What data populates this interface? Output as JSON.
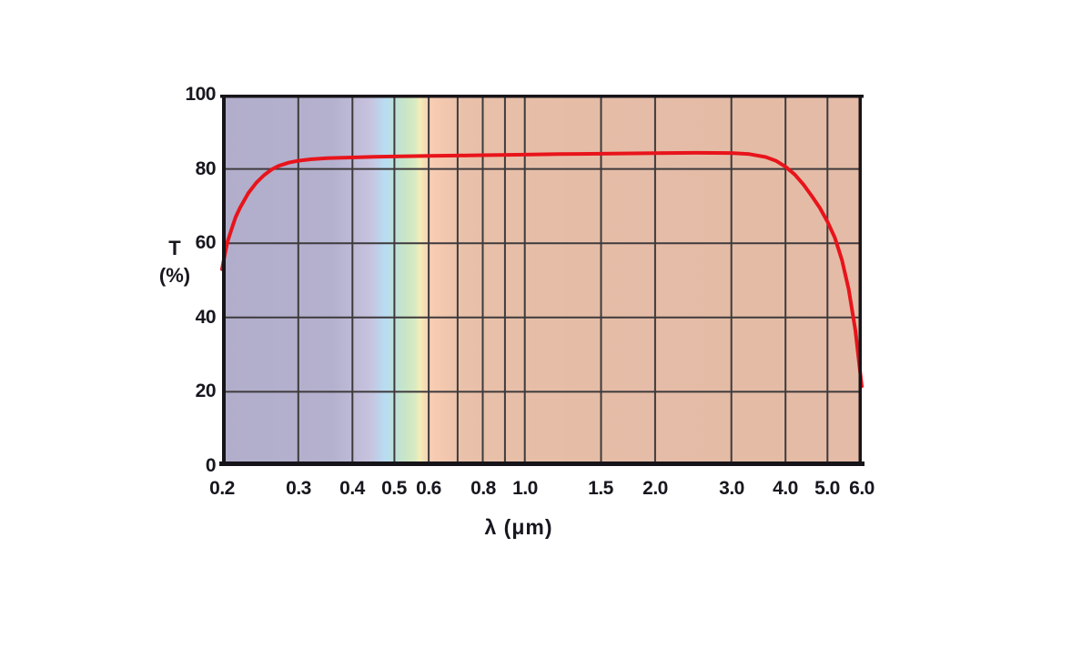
{
  "chart_data": {
    "type": "line",
    "title": "",
    "grid": true,
    "legend": false,
    "x_axis": {
      "label": "λ (μm)",
      "scale": "log",
      "min": 0.2,
      "max": 6.0,
      "ticks": [
        {
          "value": 0.2,
          "label": "0.2"
        },
        {
          "value": 0.3,
          "label": "0.3"
        },
        {
          "value": 0.4,
          "label": "0.4"
        },
        {
          "value": 0.5,
          "label": "0.5"
        },
        {
          "value": 0.6,
          "label": "0.6"
        },
        {
          "value": 0.8,
          "label": "0.8"
        },
        {
          "value": 1.0,
          "label": "1.0"
        },
        {
          "value": 1.5,
          "label": "1.5"
        },
        {
          "value": 2.0,
          "label": "2.0"
        },
        {
          "value": 3.0,
          "label": "3.0"
        },
        {
          "value": 4.0,
          "label": "4.0"
        },
        {
          "value": 5.0,
          "label": "5.0"
        },
        {
          "value": 6.0,
          "label": "6.0"
        }
      ],
      "gridlines": [
        0.3,
        0.4,
        0.5,
        0.6,
        0.7,
        0.8,
        0.9,
        1.0,
        1.5,
        2.0,
        3.0,
        4.0,
        5.0
      ]
    },
    "y_axis": {
      "label": "T (%)",
      "label_line1": "T",
      "label_line2": "(%)",
      "min": 0,
      "max": 100,
      "ticks": [
        {
          "value": 0,
          "label": "0"
        },
        {
          "value": 20,
          "label": "20"
        },
        {
          "value": 40,
          "label": "40"
        },
        {
          "value": 60,
          "label": "60"
        },
        {
          "value": 80,
          "label": "80"
        },
        {
          "value": 100,
          "label": "100"
        }
      ],
      "gridlines": [
        20,
        40,
        60,
        80
      ]
    },
    "series": [
      {
        "name": "transmittance-curve",
        "color": "#e8141b",
        "stroke_width": 4,
        "points": [
          [
            0.2,
            53.0
          ],
          [
            0.203,
            57.0
          ],
          [
            0.206,
            60.5
          ],
          [
            0.21,
            63.5
          ],
          [
            0.215,
            67.0
          ],
          [
            0.22,
            69.5
          ],
          [
            0.23,
            73.5
          ],
          [
            0.24,
            76.3
          ],
          [
            0.25,
            78.3
          ],
          [
            0.26,
            79.8
          ],
          [
            0.27,
            80.8
          ],
          [
            0.285,
            81.7
          ],
          [
            0.3,
            82.2
          ],
          [
            0.32,
            82.6
          ],
          [
            0.35,
            82.9
          ],
          [
            0.4,
            83.1
          ],
          [
            0.45,
            83.25
          ],
          [
            0.5,
            83.35
          ],
          [
            0.6,
            83.5
          ],
          [
            0.7,
            83.6
          ],
          [
            0.8,
            83.7
          ],
          [
            1.0,
            83.85
          ],
          [
            1.2,
            84.0
          ],
          [
            1.5,
            84.1
          ],
          [
            2.0,
            84.25
          ],
          [
            2.5,
            84.35
          ],
          [
            3.0,
            84.3
          ],
          [
            3.3,
            84.0
          ],
          [
            3.6,
            83.2
          ],
          [
            3.8,
            82.2
          ],
          [
            4.0,
            80.6
          ],
          [
            4.2,
            78.5
          ],
          [
            4.4,
            75.8
          ],
          [
            4.6,
            72.7
          ],
          [
            4.8,
            69.5
          ],
          [
            5.0,
            65.8
          ],
          [
            5.2,
            61.5
          ],
          [
            5.4,
            55.5
          ],
          [
            5.6,
            47.5
          ],
          [
            5.8,
            36.5
          ],
          [
            6.0,
            21.5
          ]
        ]
      }
    ],
    "spectrum_background": [
      {
        "wavelength": 0.2,
        "color": "#b1aecb"
      },
      {
        "wavelength": 0.36,
        "color": "#b4b1ce"
      },
      {
        "wavelength": 0.44,
        "color": "#c7c3de"
      },
      {
        "wavelength": 0.475,
        "color": "#b8dcf3"
      },
      {
        "wavelength": 0.505,
        "color": "#bfe1d8"
      },
      {
        "wavelength": 0.53,
        "color": "#c9e5c5"
      },
      {
        "wavelength": 0.558,
        "color": "#d9eac3"
      },
      {
        "wavelength": 0.572,
        "color": "#f2efb9"
      },
      {
        "wavelength": 0.59,
        "color": "#f6d9b6"
      },
      {
        "wavelength": 0.61,
        "color": "#f8ccb2"
      },
      {
        "wavelength": 0.72,
        "color": "#e9c1aa"
      },
      {
        "wavelength": 1.3,
        "color": "#e5bda7"
      },
      {
        "wavelength": 6.0,
        "color": "#e4bba6"
      }
    ],
    "grid_color": "#3e3a3c",
    "border_color": "#171419",
    "tick_color": "#17171f"
  }
}
